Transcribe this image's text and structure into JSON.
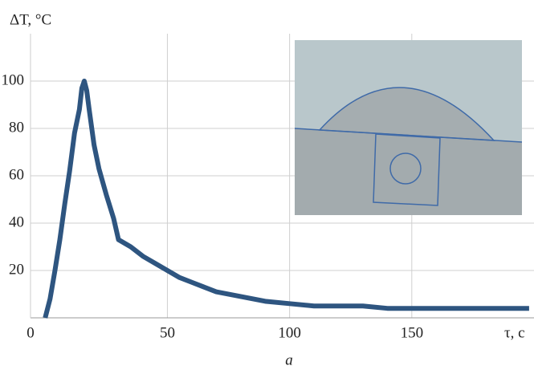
{
  "chart_data": {
    "type": "line",
    "y_label": "ΔT, °C",
    "x_label": "τ, c",
    "caption": "a",
    "xlim": [
      -6,
      200
    ],
    "xticks": [
      50,
      100,
      150
    ],
    "ylim": [
      0,
      120
    ],
    "yticks": [
      0,
      20,
      40,
      60,
      80,
      100
    ],
    "grid": true,
    "series": [
      {
        "color": "#2e5580",
        "x": [
          0,
          2,
          4,
          6,
          8,
          10,
          12,
          14,
          15,
          16,
          17,
          18,
          20,
          22,
          25,
          28,
          30,
          35,
          40,
          45,
          50,
          55,
          60,
          65,
          70,
          80,
          90,
          100,
          110,
          120,
          130,
          140,
          150,
          160,
          170,
          180,
          190,
          198
        ],
        "values": [
          0,
          8,
          20,
          33,
          48,
          62,
          78,
          88,
          97,
          100,
          96,
          88,
          73,
          63,
          52,
          42,
          33,
          30,
          26,
          23,
          20,
          17,
          15,
          13,
          11,
          9,
          7,
          6,
          5,
          5,
          5,
          4,
          4,
          4,
          4,
          4,
          4,
          4
        ]
      }
    ]
  }
}
